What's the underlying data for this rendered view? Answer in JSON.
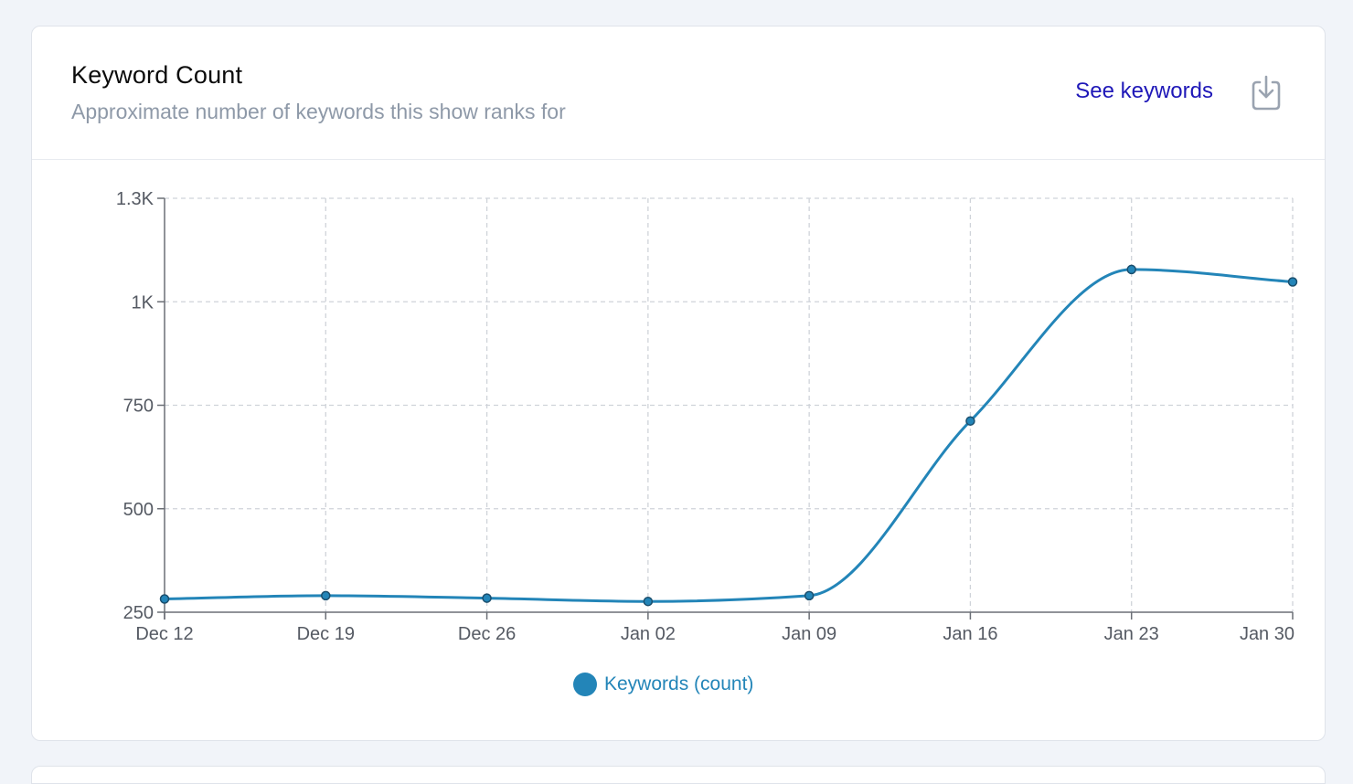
{
  "header": {
    "title": "Keyword Count",
    "subtitle": "Approximate number of keywords this show ranks for",
    "see_keywords_label": "See keywords",
    "download_icon": "download-icon"
  },
  "colors": {
    "series": "#2385b8",
    "link": "#1f18b8",
    "legend_text": "#2385b8"
  },
  "chart_data": {
    "type": "line",
    "x": [
      "Dec 12",
      "Dec 19",
      "Dec 26",
      "Jan 02",
      "Jan 09",
      "Jan 16",
      "Jan 23",
      "Jan 30"
    ],
    "series": [
      {
        "name": "Keywords (count)",
        "values": [
          282,
          290,
          284,
          276,
          290,
          712,
          1078,
          1048
        ]
      }
    ],
    "ylim": [
      250,
      1250
    ],
    "yticks": [
      250,
      500,
      750,
      1000,
      1250
    ],
    "ytick_labels": [
      "250",
      "500",
      "750",
      "1K",
      "1.3K"
    ],
    "grid": true,
    "legend_position": "bottom-center",
    "smooth": true,
    "markers": true
  }
}
